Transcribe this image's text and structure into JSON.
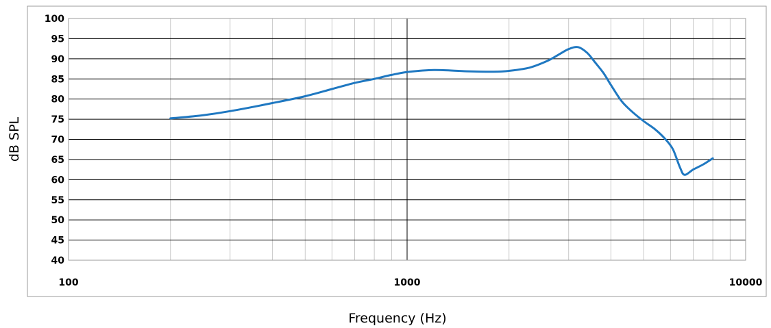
{
  "chart_data": {
    "type": "line",
    "title": "",
    "xlabel": "Frequency (Hz)",
    "ylabel": "dB SPL",
    "x_scale": "log",
    "xlim": [
      100,
      10000
    ],
    "ylim": [
      40,
      100
    ],
    "x_ticks": [
      100,
      1000,
      10000
    ],
    "x_tick_labels": [
      "100",
      "1000",
      "10000"
    ],
    "y_ticks": [
      40,
      45,
      50,
      55,
      60,
      65,
      70,
      75,
      80,
      85,
      90,
      95,
      100
    ],
    "y_tick_labels": [
      "40",
      "45",
      "50",
      "55",
      "60",
      "65",
      "70",
      "75",
      "80",
      "85",
      "90",
      "95",
      "100"
    ],
    "grid": true,
    "legend": "none",
    "line_color": "#1f78c1",
    "series": [
      {
        "x": [
          200,
          250,
          300,
          400,
          500,
          600,
          700,
          800,
          900,
          1000,
          1200,
          1500,
          1800,
          2000,
          2300,
          2600,
          2800,
          3000,
          3200,
          3400,
          3600,
          3800,
          4000,
          4300,
          4600,
          5000,
          5400,
          5800,
          6100,
          6400,
          6600,
          7000,
          7500,
          8000
        ],
        "y": [
          75.2,
          76.0,
          77.0,
          79.0,
          80.7,
          82.5,
          84.0,
          85.0,
          86.0,
          86.7,
          87.2,
          86.9,
          86.8,
          87.0,
          87.8,
          89.5,
          91.0,
          92.4,
          92.9,
          91.5,
          89.0,
          86.5,
          83.5,
          79.5,
          77.0,
          74.5,
          72.5,
          70.0,
          67.5,
          63.0,
          61.2,
          62.5,
          63.8,
          65.3
        ]
      }
    ]
  }
}
